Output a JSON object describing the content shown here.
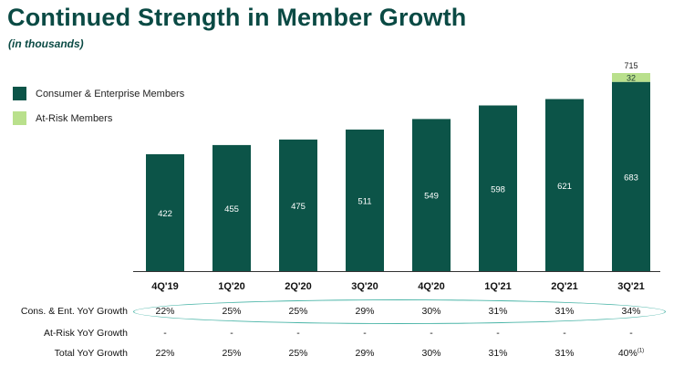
{
  "title": "Continued Strength in Member Growth",
  "subtitle": "(in thousands)",
  "colors": {
    "consumer": "#0c5448",
    "at_risk": "#b9e08c",
    "title": "#0a4a44",
    "ellipse": "#4bb5a8"
  },
  "legend": [
    {
      "label": "Consumer & Enterprise Members",
      "color": "#0c5448"
    },
    {
      "label": "At-Risk Members",
      "color": "#b9e08c"
    }
  ],
  "chart_data": {
    "type": "bar",
    "stacked": true,
    "categories": [
      "4Q'19",
      "1Q'20",
      "2Q'20",
      "3Q'20",
      "4Q'20",
      "1Q'21",
      "2Q'21",
      "3Q'21"
    ],
    "series": [
      {
        "name": "Consumer & Enterprise Members",
        "values": [
          422,
          455,
          475,
          511,
          549,
          598,
          621,
          683
        ]
      },
      {
        "name": "At-Risk Members",
        "values": [
          0,
          0,
          0,
          0,
          0,
          0,
          0,
          32
        ]
      }
    ],
    "totals": [
      "",
      "",
      "",
      "",
      "",
      "",
      "",
      "715"
    ],
    "ylim": [
      0,
      715
    ],
    "grid": false
  },
  "table": {
    "rows": [
      {
        "label": "Cons. & Ent. YoY Growth",
        "values": [
          "22%",
          "25%",
          "25%",
          "29%",
          "30%",
          "31%",
          "31%",
          "34%"
        ]
      },
      {
        "label": "At-Risk YoY Growth",
        "values": [
          "-",
          "-",
          "-",
          "-",
          "-",
          "-",
          "-",
          "-"
        ]
      },
      {
        "label": "Total YoY Growth",
        "values": [
          "22%",
          "25%",
          "25%",
          "29%",
          "30%",
          "31%",
          "31%",
          "40%"
        ]
      }
    ],
    "footnote": "(1)"
  }
}
